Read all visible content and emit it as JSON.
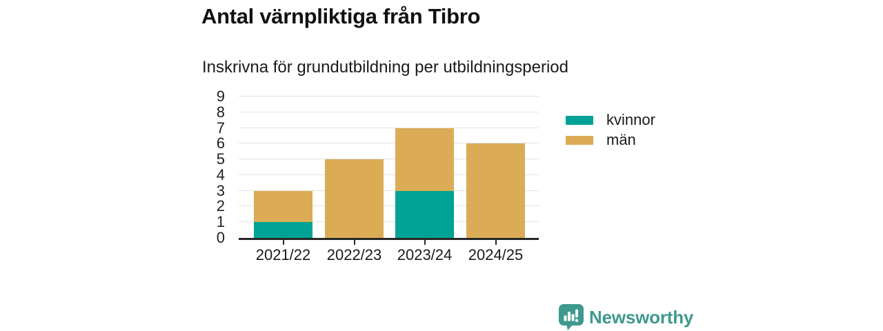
{
  "header": {
    "title": "Antal värnpliktiga från Tibro",
    "subtitle": "Inskrivna för grundutbildning per utbildningsperiod"
  },
  "chart_data": {
    "type": "bar",
    "stacked": true,
    "title": "Antal värnpliktiga från Tibro",
    "subtitle": "Inskrivna för grundutbildning per utbildningsperiod",
    "categories": [
      "2021/22",
      "2022/23",
      "2023/24",
      "2024/25"
    ],
    "series": [
      {
        "name": "kvinnor",
        "color": "#00a296",
        "values": [
          1,
          0,
          3,
          0
        ]
      },
      {
        "name": "män",
        "color": "#dbac55",
        "values": [
          2,
          5,
          4,
          6
        ]
      }
    ],
    "totals": [
      3,
      5,
      7,
      6
    ],
    "xlabel": "",
    "ylabel": "",
    "ylim": [
      0,
      9
    ],
    "yticks": [
      0,
      1,
      2,
      3,
      4,
      5,
      6,
      7,
      8,
      9
    ],
    "grid": true,
    "legend_position": "right",
    "axis_color": "#262626",
    "gridline_color": "#e2e2e2"
  },
  "footer": {
    "brand": "Newsworthy",
    "brand_color": "#3e998e",
    "logo_icon": "speech-bubble-bar-chart-icon"
  }
}
